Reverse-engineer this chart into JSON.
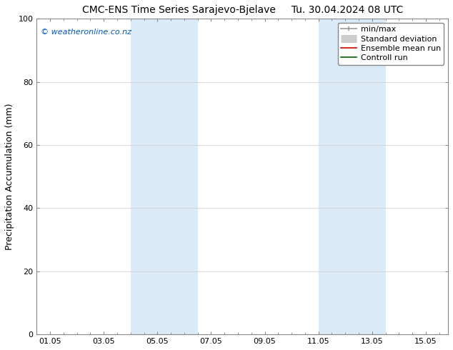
{
  "title_left": "CMC-ENS Time Series Sarajevo-Bjelave",
  "title_right": "Tu. 30.04.2024 08 UTC",
  "ylabel": "Precipitation Accumulation (mm)",
  "watermark": "© weatheronline.co.nz",
  "watermark_color": "#0055cc",
  "ylim": [
    0,
    100
  ],
  "yticks": [
    0,
    20,
    40,
    60,
    80,
    100
  ],
  "bg_color": "#ffffff",
  "plot_bg_color": "#ffffff",
  "shaded_bands": [
    {
      "x_start": 3.0,
      "x_end": 5.5,
      "color": "#daeaf7"
    },
    {
      "x_start": 10.0,
      "x_end": 12.5,
      "color": "#daeaf7"
    }
  ],
  "xtick_labels": [
    "01.05",
    "03.05",
    "05.05",
    "07.05",
    "09.05",
    "11.05",
    "13.05",
    "15.05"
  ],
  "xtick_positions": [
    0,
    2,
    4,
    6,
    8,
    10,
    12,
    14
  ],
  "x_min": -0.5,
  "x_max": 14.83,
  "title_fontsize": 10,
  "tick_fontsize": 8,
  "label_fontsize": 9,
  "watermark_fontsize": 8,
  "legend_minmax_color": "#999999",
  "legend_std_color": "#cccccc",
  "legend_ensemble_color": "#cc0000",
  "legend_control_color": "#006600"
}
